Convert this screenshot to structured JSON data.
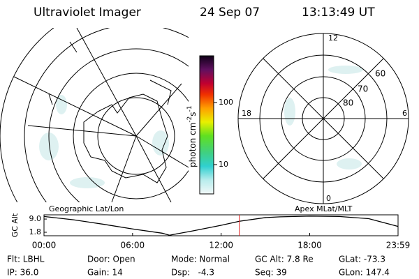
{
  "header": {
    "title": "Ultraviolet Imager",
    "date": "24 Sep 07",
    "time": "13:13:49 UT"
  },
  "map_panel": {
    "label": "Geographic Lat/Lon"
  },
  "polar_panel": {
    "label": "Apex MLat/MLT",
    "mlt_labels": [
      "12",
      "6",
      "18",
      "0"
    ],
    "mlat_labels": [
      "60",
      "70",
      "80"
    ]
  },
  "colorbar": {
    "ticks": [
      100,
      10
    ],
    "unit": [
      "photon cm",
      "-2",
      "s",
      "-1"
    ]
  },
  "chart_data": {
    "type": "line",
    "ylabel": "GC Alt",
    "x": [
      0,
      2,
      4,
      6,
      8,
      8.5,
      10,
      12,
      13.23,
      15,
      16,
      18,
      20,
      22,
      23.983
    ],
    "series": [
      {
        "name": "GC Alt",
        "color": "#000000",
        "values": [
          10.4,
          8.6,
          6.2,
          3.6,
          1.3,
          0.2,
          2.4,
          5.6,
          7.8,
          9.8,
          10.2,
          10.6,
          10.4,
          9.2,
          5.0
        ]
      }
    ],
    "marker_x": 13.23,
    "marker_color": "#e02020",
    "xlim": [
      0,
      23.983
    ],
    "xticks": [
      {
        "value": 0,
        "label": "00:00"
      },
      {
        "value": 6,
        "label": "06:00"
      },
      {
        "value": 12,
        "label": "12:00"
      },
      {
        "value": 18,
        "label": "18:00"
      },
      {
        "value": 23.983,
        "label": "23:59"
      }
    ],
    "ylim": [
      -0.1,
      11.3
    ],
    "yticks": [
      {
        "value": 9,
        "label": "9.0"
      },
      {
        "value": 1.8,
        "label": "1.8"
      }
    ]
  },
  "footer": {
    "rows": [
      [
        "Flt: LBHL",
        "Door: Open",
        "Mode: Normal",
        "GC Alt: 7.8 Re",
        "GLat: -73.3"
      ],
      [
        "IP: 36.0",
        "Gain: 14",
        "Dsp:   -4.3",
        "Seq: 39",
        "GLon: 147.4"
      ]
    ]
  }
}
